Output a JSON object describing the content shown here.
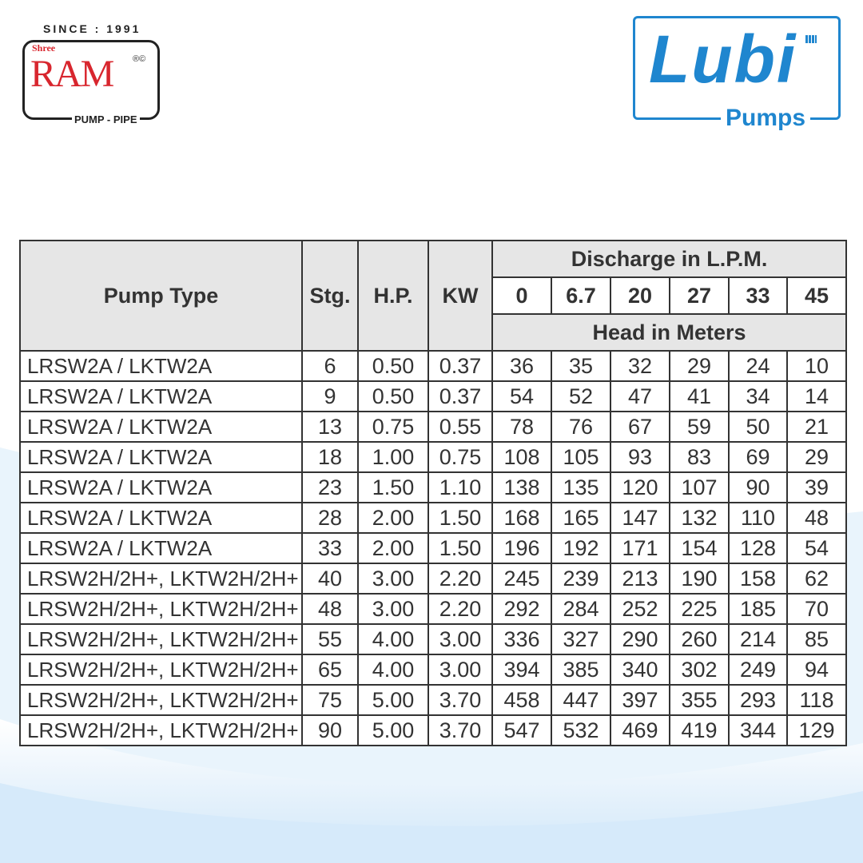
{
  "logos": {
    "left": {
      "since": "SINCE : 1991",
      "shree": "Shree",
      "name": "RAM",
      "reg": "®©",
      "tagline": "PUMP - PIPE",
      "color": "#d8262e"
    },
    "right": {
      "name": "Lubi",
      "tagline": "Pumps",
      "color": "#1f86cf"
    }
  },
  "table": {
    "headers": {
      "pump_type": "Pump Type",
      "stg": "Stg.",
      "hp": "H.P.",
      "kw": "KW",
      "discharge": "Discharge in L.P.M.",
      "head": "Head in Meters"
    },
    "discharge_values": [
      "0",
      "6.7",
      "20",
      "27",
      "33",
      "45"
    ],
    "rows": [
      [
        "LRSW2A / LKTW2A",
        "6",
        "0.50",
        "0.37",
        "36",
        "35",
        "32",
        "29",
        "24",
        "10"
      ],
      [
        "LRSW2A / LKTW2A",
        "9",
        "0.50",
        "0.37",
        "54",
        "52",
        "47",
        "41",
        "34",
        "14"
      ],
      [
        "LRSW2A / LKTW2A",
        "13",
        "0.75",
        "0.55",
        "78",
        "76",
        "67",
        "59",
        "50",
        "21"
      ],
      [
        "LRSW2A / LKTW2A",
        "18",
        "1.00",
        "0.75",
        "108",
        "105",
        "93",
        "83",
        "69",
        "29"
      ],
      [
        "LRSW2A / LKTW2A",
        "23",
        "1.50",
        "1.10",
        "138",
        "135",
        "120",
        "107",
        "90",
        "39"
      ],
      [
        "LRSW2A / LKTW2A",
        "28",
        "2.00",
        "1.50",
        "168",
        "165",
        "147",
        "132",
        "110",
        "48"
      ],
      [
        "LRSW2A / LKTW2A",
        "33",
        "2.00",
        "1.50",
        "196",
        "192",
        "171",
        "154",
        "128",
        "54"
      ],
      [
        "LRSW2H/2H+, LKTW2H/2H+",
        "40",
        "3.00",
        "2.20",
        "245",
        "239",
        "213",
        "190",
        "158",
        "62"
      ],
      [
        "LRSW2H/2H+, LKTW2H/2H+",
        "48",
        "3.00",
        "2.20",
        "292",
        "284",
        "252",
        "225",
        "185",
        "70"
      ],
      [
        "LRSW2H/2H+, LKTW2H/2H+",
        "55",
        "4.00",
        "3.00",
        "336",
        "327",
        "290",
        "260",
        "214",
        "85"
      ],
      [
        "LRSW2H/2H+, LKTW2H/2H+",
        "65",
        "4.00",
        "3.00",
        "394",
        "385",
        "340",
        "302",
        "249",
        "94"
      ],
      [
        "LRSW2H/2H+, LKTW2H/2H+",
        "75",
        "5.00",
        "3.70",
        "458",
        "447",
        "397",
        "355",
        "293",
        "118"
      ],
      [
        "LRSW2H/2H+, LKTW2H/2H+",
        "90",
        "5.00",
        "3.70",
        "547",
        "532",
        "469",
        "419",
        "344",
        "129"
      ]
    ]
  }
}
